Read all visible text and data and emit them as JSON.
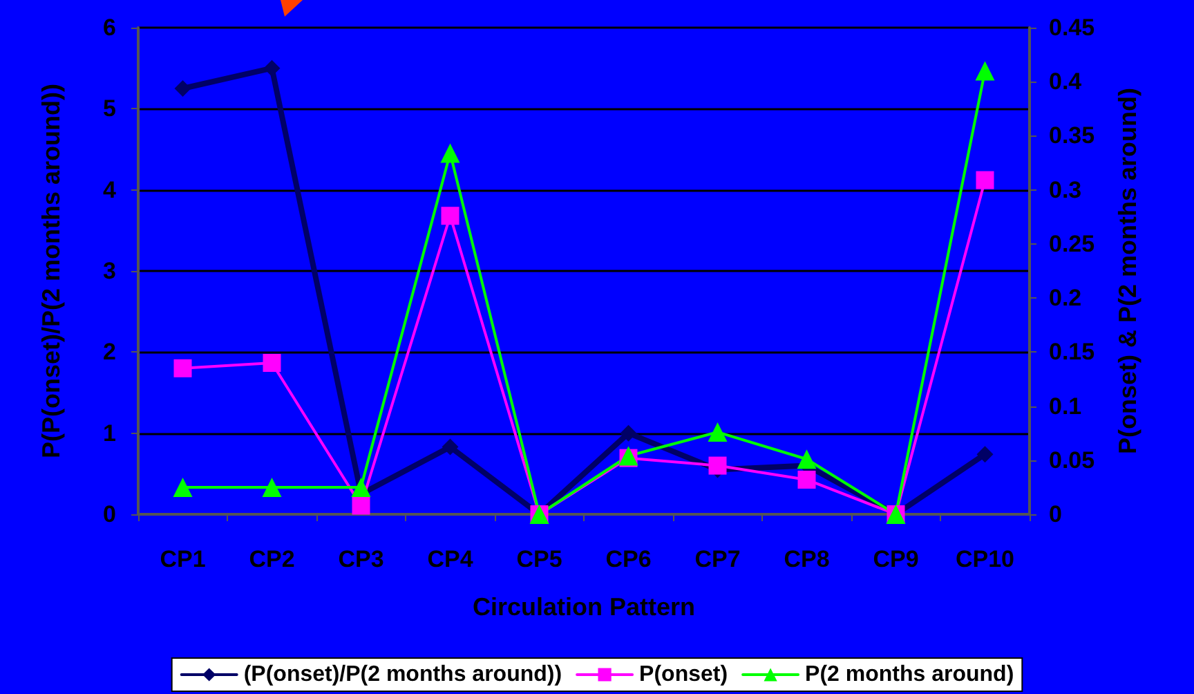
{
  "chart_data": {
    "type": "line",
    "xlabel": "Circulation Pattern",
    "ylabel": "P(P(onset)/P(2 months around))",
    "y2label": "P(onset) & P(2 months around)",
    "categories": [
      "CP1",
      "CP2",
      "CP3",
      "CP4",
      "CP5",
      "CP6",
      "CP7",
      "CP8",
      "CP9",
      "CP10"
    ],
    "series": [
      {
        "name": "(P(onset)/P(2 months around))",
        "color": "#000066",
        "marker": "diamond",
        "values": [
          5.25,
          5.5,
          0.25,
          0.83,
          0,
          1.0,
          0.55,
          0.6,
          0,
          0.74
        ]
      },
      {
        "name": "P(onset)",
        "color": "#ff00ff",
        "marker": "square",
        "axis": "y2",
        "values": [
          0.135,
          0.14,
          0.008,
          0.276,
          0,
          0.052,
          0.045,
          0.032,
          0,
          0.309
        ]
      },
      {
        "name": "P(2 months around)",
        "color": "#00ff00",
        "marker": "triangle",
        "axis": "y2",
        "values": [
          0.025,
          0.025,
          0.025,
          0.334,
          0,
          0.054,
          0.076,
          0.051,
          0,
          0.41
        ]
      }
    ],
    "ylim": [
      0,
      6
    ],
    "yticks": [
      0,
      1,
      2,
      3,
      4,
      5,
      6
    ],
    "y2lim": [
      0,
      0.45
    ],
    "y2ticks": [
      0,
      0.05,
      0.1,
      0.15,
      0.2,
      0.25,
      0.3,
      0.35,
      0.4,
      0.45
    ],
    "grid": "y",
    "legend": "bottom"
  }
}
